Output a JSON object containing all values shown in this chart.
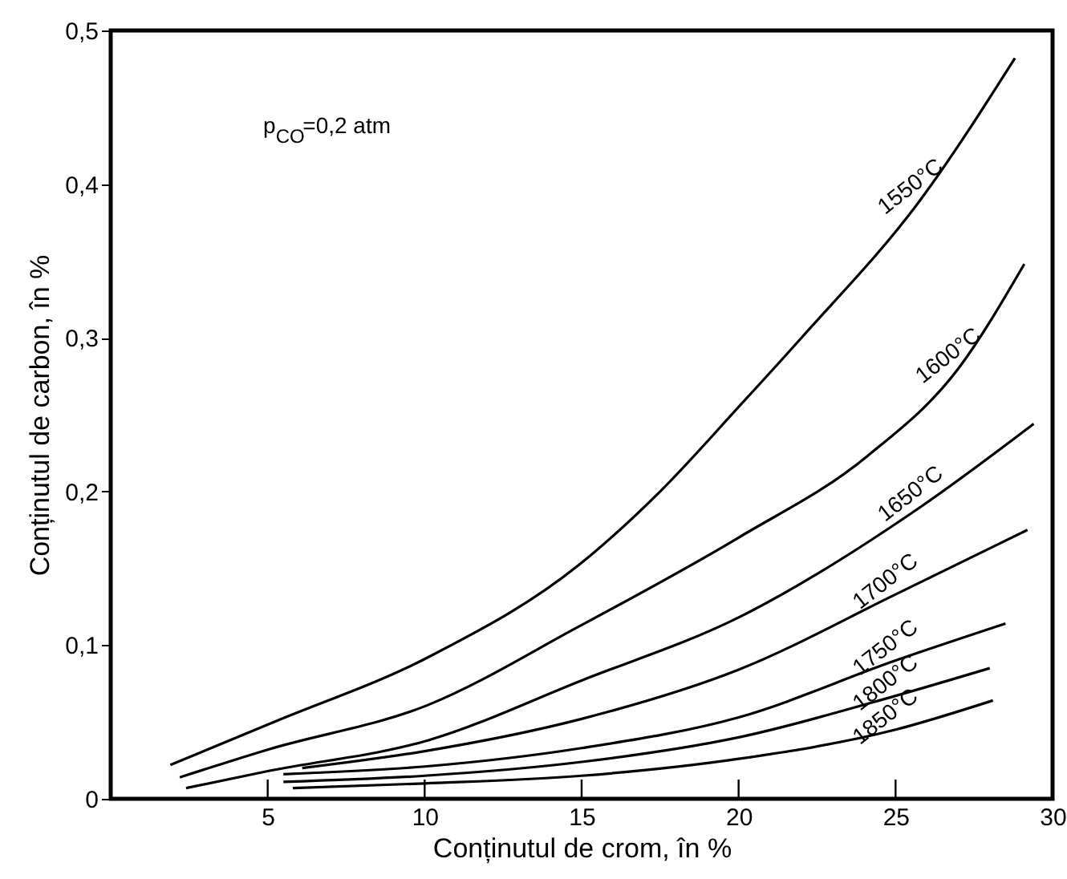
{
  "chart_data": {
    "type": "line",
    "xlabel": "Conținutul de crom, în   %",
    "ylabel": "Conținutul de carbon, în  %",
    "annotations": [
      "p$_{CO}$=0,2 atm"
    ],
    "xlim": [
      0,
      30
    ],
    "xticks": [
      5,
      10,
      15,
      20,
      25,
      30
    ],
    "ylim": [
      0,
      0.5
    ],
    "yticks": [
      {
        "value": 0,
        "label": "0"
      },
      {
        "value": 0.1,
        "label": "0,1"
      },
      {
        "value": 0.2,
        "label": "0,2"
      },
      {
        "value": 0.3,
        "label": "0,3"
      },
      {
        "value": 0.4,
        "label": "0,4"
      },
      {
        "value": 0.5,
        "label": "0,5"
      }
    ],
    "grid": false,
    "marker": "none",
    "line_style": "solid",
    "series": [
      {
        "name": "1550°C",
        "color": "#000000",
        "x": [
          1.9,
          5.2,
          10.1,
          14.9,
          17.5,
          20,
          22,
          25.8,
          28.8
        ],
        "values": [
          0.022,
          0.05,
          0.092,
          0.152,
          0.2,
          0.255,
          0.3,
          0.39,
          0.482
        ]
      },
      {
        "name": "1600°C",
        "color": "#000000",
        "x": [
          2.2,
          5,
          10.1,
          14.9,
          20,
          24.1,
          27,
          29.1
        ],
        "values": [
          0.014,
          0.032,
          0.061,
          0.112,
          0.17,
          0.223,
          0.28,
          0.348
        ]
      },
      {
        "name": "1650°C",
        "color": "#000000",
        "x": [
          2.4,
          5,
          10.1,
          15,
          20,
          25.8,
          29.4
        ],
        "values": [
          0.007,
          0.018,
          0.038,
          0.077,
          0.118,
          0.19,
          0.244
        ]
      },
      {
        "name": "1700°C",
        "color": "#000000",
        "x": [
          6.1,
          10,
          15,
          20,
          25,
          29.2
        ],
        "values": [
          0.02,
          0.031,
          0.052,
          0.084,
          0.133,
          0.175
        ]
      },
      {
        "name": "1750°C",
        "color": "#000000",
        "x": [
          5.5,
          10,
          15,
          20,
          25,
          28.5
        ],
        "values": [
          0.016,
          0.021,
          0.033,
          0.053,
          0.09,
          0.114
        ]
      },
      {
        "name": "1800°C",
        "color": "#000000",
        "x": [
          5.5,
          10,
          15,
          20,
          25,
          28
        ],
        "values": [
          0.011,
          0.015,
          0.024,
          0.04,
          0.067,
          0.085
        ]
      },
      {
        "name": "1850°C",
        "color": "#000000",
        "x": [
          5.8,
          10,
          15,
          20,
          25,
          28.1
        ],
        "values": [
          0.007,
          0.01,
          0.015,
          0.026,
          0.045,
          0.064
        ]
      }
    ]
  }
}
